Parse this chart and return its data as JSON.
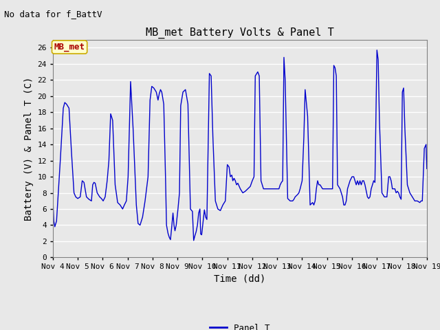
{
  "title": "MB_met Battery Volts & Panel T",
  "no_data_text": "No data for f_BattV",
  "ylabel": "Battery (V) & Panel T (C)",
  "xlabel": "Time (dd)",
  "legend_label": "Panel T",
  "legend_color": "#0000cc",
  "line_color": "#0000cc",
  "ylim": [
    0,
    27
  ],
  "yticks": [
    0,
    2,
    4,
    6,
    8,
    10,
    12,
    14,
    16,
    18,
    20,
    22,
    24,
    26
  ],
  "x_start": 4.0,
  "x_end": 19.0,
  "xtick_positions": [
    4,
    5,
    6,
    7,
    8,
    9,
    10,
    11,
    12,
    13,
    14,
    15,
    16,
    17,
    18,
    19
  ],
  "xtick_labels": [
    "Nov 4",
    "Nov 5",
    "Nov 6",
    "Nov 7",
    "Nov 8",
    "Nov 9",
    "Nov 10",
    "Nov 11",
    "Nov 12",
    "Nov 13",
    "Nov 14",
    "Nov 15",
    "Nov 16",
    "Nov 17",
    "Nov 18",
    "Nov 19"
  ],
  "bg_color": "#e8e8e8",
  "plot_bg_color": "#e8e8e8",
  "mb_met_box_facecolor": "#ffffcc",
  "mb_met_box_edgecolor": "#ccaa00",
  "mb_met_text_color": "#aa0000",
  "title_fontsize": 11,
  "axis_label_fontsize": 10,
  "tick_fontsize": 8,
  "no_data_fontsize": 9,
  "grid_color": "#ffffff",
  "series": [
    {
      "day": 4.0,
      "val": 7.5
    },
    {
      "day": 4.04,
      "val": 4.5
    },
    {
      "day": 4.08,
      "val": 3.8
    },
    {
      "day": 4.15,
      "val": 4.5
    },
    {
      "day": 4.3,
      "val": 12.0
    },
    {
      "day": 4.42,
      "val": 18.5
    },
    {
      "day": 4.48,
      "val": 19.2
    },
    {
      "day": 4.55,
      "val": 19.0
    },
    {
      "day": 4.65,
      "val": 18.5
    },
    {
      "day": 4.75,
      "val": 13.0
    },
    {
      "day": 4.85,
      "val": 8.0
    },
    {
      "day": 4.92,
      "val": 7.5
    },
    {
      "day": 5.0,
      "val": 7.3
    },
    {
      "day": 5.1,
      "val": 7.5
    },
    {
      "day": 5.18,
      "val": 9.5
    },
    {
      "day": 5.25,
      "val": 9.3
    },
    {
      "day": 5.35,
      "val": 7.5
    },
    {
      "day": 5.45,
      "val": 7.2
    },
    {
      "day": 5.55,
      "val": 7.0
    },
    {
      "day": 5.6,
      "val": 9.0
    },
    {
      "day": 5.65,
      "val": 9.3
    },
    {
      "day": 5.7,
      "val": 9.2
    },
    {
      "day": 5.78,
      "val": 8.0
    },
    {
      "day": 5.88,
      "val": 7.5
    },
    {
      "day": 5.95,
      "val": 7.3
    },
    {
      "day": 6.02,
      "val": 7.0
    },
    {
      "day": 6.1,
      "val": 7.5
    },
    {
      "day": 6.18,
      "val": 9.5
    },
    {
      "day": 6.25,
      "val": 12.0
    },
    {
      "day": 6.32,
      "val": 17.8
    },
    {
      "day": 6.4,
      "val": 17.0
    },
    {
      "day": 6.5,
      "val": 9.0
    },
    {
      "day": 6.6,
      "val": 6.8
    },
    {
      "day": 6.7,
      "val": 6.5
    },
    {
      "day": 6.8,
      "val": 6.0
    },
    {
      "day": 6.87,
      "val": 6.5
    },
    {
      "day": 6.95,
      "val": 7.0
    },
    {
      "day": 7.02,
      "val": 10.0
    },
    {
      "day": 7.08,
      "val": 17.0
    },
    {
      "day": 7.12,
      "val": 21.8
    },
    {
      "day": 7.22,
      "val": 16.0
    },
    {
      "day": 7.35,
      "val": 6.5
    },
    {
      "day": 7.42,
      "val": 4.2
    },
    {
      "day": 7.5,
      "val": 4.0
    },
    {
      "day": 7.6,
      "val": 5.0
    },
    {
      "day": 7.7,
      "val": 7.0
    },
    {
      "day": 7.82,
      "val": 10.0
    },
    {
      "day": 7.9,
      "val": 19.5
    },
    {
      "day": 7.97,
      "val": 21.2
    },
    {
      "day": 8.05,
      "val": 21.0
    },
    {
      "day": 8.15,
      "val": 20.5
    },
    {
      "day": 8.22,
      "val": 19.5
    },
    {
      "day": 8.27,
      "val": 20.3
    },
    {
      "day": 8.32,
      "val": 20.8
    },
    {
      "day": 8.37,
      "val": 20.5
    },
    {
      "day": 8.45,
      "val": 19.0
    },
    {
      "day": 8.52,
      "val": 10.0
    },
    {
      "day": 8.56,
      "val": 4.0
    },
    {
      "day": 8.62,
      "val": 3.0
    },
    {
      "day": 8.67,
      "val": 2.5
    },
    {
      "day": 8.72,
      "val": 2.2
    },
    {
      "day": 8.77,
      "val": 3.8
    },
    {
      "day": 8.82,
      "val": 5.5
    },
    {
      "day": 8.86,
      "val": 4.0
    },
    {
      "day": 8.9,
      "val": 3.3
    },
    {
      "day": 8.95,
      "val": 4.0
    },
    {
      "day": 9.02,
      "val": 6.0
    },
    {
      "day": 9.08,
      "val": 8.0
    },
    {
      "day": 9.13,
      "val": 18.8
    },
    {
      "day": 9.22,
      "val": 20.5
    },
    {
      "day": 9.32,
      "val": 20.8
    },
    {
      "day": 9.42,
      "val": 19.0
    },
    {
      "day": 9.52,
      "val": 6.0
    },
    {
      "day": 9.6,
      "val": 5.7
    },
    {
      "day": 9.65,
      "val": 2.1
    },
    {
      "day": 9.7,
      "val": 2.7
    },
    {
      "day": 9.75,
      "val": 3.2
    },
    {
      "day": 9.8,
      "val": 4.0
    },
    {
      "day": 9.85,
      "val": 5.5
    },
    {
      "day": 9.9,
      "val": 6.0
    },
    {
      "day": 9.93,
      "val": 2.9
    },
    {
      "day": 9.97,
      "val": 2.8
    },
    {
      "day": 10.03,
      "val": 4.5
    },
    {
      "day": 10.08,
      "val": 5.9
    },
    {
      "day": 10.13,
      "val": 5.0
    },
    {
      "day": 10.18,
      "val": 4.7
    },
    {
      "day": 10.28,
      "val": 22.8
    },
    {
      "day": 10.35,
      "val": 22.5
    },
    {
      "day": 10.42,
      "val": 15.0
    },
    {
      "day": 10.52,
      "val": 7.0
    },
    {
      "day": 10.62,
      "val": 6.0
    },
    {
      "day": 10.72,
      "val": 5.8
    },
    {
      "day": 10.82,
      "val": 6.5
    },
    {
      "day": 10.92,
      "val": 7.0
    },
    {
      "day": 11.0,
      "val": 11.5
    },
    {
      "day": 11.07,
      "val": 11.2
    },
    {
      "day": 11.12,
      "val": 10.0
    },
    {
      "day": 11.18,
      "val": 10.2
    },
    {
      "day": 11.22,
      "val": 9.5
    },
    {
      "day": 11.27,
      "val": 9.8
    },
    {
      "day": 11.32,
      "val": 9.5
    },
    {
      "day": 11.37,
      "val": 9.0
    },
    {
      "day": 11.42,
      "val": 9.2
    },
    {
      "day": 11.52,
      "val": 8.5
    },
    {
      "day": 11.62,
      "val": 8.0
    },
    {
      "day": 11.72,
      "val": 8.2
    },
    {
      "day": 11.82,
      "val": 8.5
    },
    {
      "day": 11.92,
      "val": 8.8
    },
    {
      "day": 12.0,
      "val": 9.5
    },
    {
      "day": 12.07,
      "val": 10.0
    },
    {
      "day": 12.12,
      "val": 22.5
    },
    {
      "day": 12.22,
      "val": 23.0
    },
    {
      "day": 12.28,
      "val": 22.5
    },
    {
      "day": 12.35,
      "val": 9.5
    },
    {
      "day": 12.45,
      "val": 8.5
    },
    {
      "day": 12.55,
      "val": 8.5
    },
    {
      "day": 12.65,
      "val": 8.5
    },
    {
      "day": 12.75,
      "val": 8.5
    },
    {
      "day": 12.85,
      "val": 8.5
    },
    {
      "day": 12.95,
      "val": 8.5
    },
    {
      "day": 13.0,
      "val": 8.5
    },
    {
      "day": 13.07,
      "val": 8.5
    },
    {
      "day": 13.12,
      "val": 9.0
    },
    {
      "day": 13.17,
      "val": 9.3
    },
    {
      "day": 13.22,
      "val": 9.5
    },
    {
      "day": 13.27,
      "val": 24.8
    },
    {
      "day": 13.32,
      "val": 22.0
    },
    {
      "day": 13.42,
      "val": 7.3
    },
    {
      "day": 13.52,
      "val": 7.0
    },
    {
      "day": 13.62,
      "val": 7.0
    },
    {
      "day": 13.67,
      "val": 7.2
    },
    {
      "day": 13.72,
      "val": 7.5
    },
    {
      "day": 13.82,
      "val": 7.8
    },
    {
      "day": 13.87,
      "val": 8.0
    },
    {
      "day": 13.92,
      "val": 8.5
    },
    {
      "day": 14.0,
      "val": 9.5
    },
    {
      "day": 14.07,
      "val": 15.0
    },
    {
      "day": 14.12,
      "val": 20.8
    },
    {
      "day": 14.22,
      "val": 17.5
    },
    {
      "day": 14.32,
      "val": 6.5
    },
    {
      "day": 14.42,
      "val": 6.8
    },
    {
      "day": 14.47,
      "val": 6.5
    },
    {
      "day": 14.52,
      "val": 7.0
    },
    {
      "day": 14.57,
      "val": 8.5
    },
    {
      "day": 14.62,
      "val": 9.5
    },
    {
      "day": 14.67,
      "val": 9.0
    },
    {
      "day": 14.72,
      "val": 9.0
    },
    {
      "day": 14.82,
      "val": 8.5
    },
    {
      "day": 14.92,
      "val": 8.5
    },
    {
      "day": 15.0,
      "val": 8.5
    },
    {
      "day": 15.07,
      "val": 8.5
    },
    {
      "day": 15.12,
      "val": 8.5
    },
    {
      "day": 15.17,
      "val": 8.5
    },
    {
      "day": 15.22,
      "val": 8.5
    },
    {
      "day": 15.27,
      "val": 23.8
    },
    {
      "day": 15.32,
      "val": 23.5
    },
    {
      "day": 15.37,
      "val": 22.5
    },
    {
      "day": 15.42,
      "val": 9.0
    },
    {
      "day": 15.52,
      "val": 8.5
    },
    {
      "day": 15.62,
      "val": 7.5
    },
    {
      "day": 15.67,
      "val": 6.5
    },
    {
      "day": 15.72,
      "val": 6.5
    },
    {
      "day": 15.77,
      "val": 7.0
    },
    {
      "day": 15.82,
      "val": 8.5
    },
    {
      "day": 15.92,
      "val": 9.5
    },
    {
      "day": 16.0,
      "val": 10.0
    },
    {
      "day": 16.07,
      "val": 10.0
    },
    {
      "day": 16.12,
      "val": 9.5
    },
    {
      "day": 16.17,
      "val": 9.0
    },
    {
      "day": 16.22,
      "val": 9.5
    },
    {
      "day": 16.27,
      "val": 9.0
    },
    {
      "day": 16.32,
      "val": 9.5
    },
    {
      "day": 16.37,
      "val": 9.0
    },
    {
      "day": 16.42,
      "val": 9.5
    },
    {
      "day": 16.47,
      "val": 9.5
    },
    {
      "day": 16.52,
      "val": 9.0
    },
    {
      "day": 16.62,
      "val": 7.5
    },
    {
      "day": 16.67,
      "val": 7.3
    },
    {
      "day": 16.72,
      "val": 7.5
    },
    {
      "day": 16.77,
      "val": 8.5
    },
    {
      "day": 16.82,
      "val": 9.0
    },
    {
      "day": 16.87,
      "val": 9.5
    },
    {
      "day": 16.92,
      "val": 9.3
    },
    {
      "day": 17.0,
      "val": 25.7
    },
    {
      "day": 17.05,
      "val": 24.5
    },
    {
      "day": 17.1,
      "val": 17.0
    },
    {
      "day": 17.2,
      "val": 8.0
    },
    {
      "day": 17.3,
      "val": 7.5
    },
    {
      "day": 17.4,
      "val": 7.5
    },
    {
      "day": 17.47,
      "val": 10.0
    },
    {
      "day": 17.52,
      "val": 10.0
    },
    {
      "day": 17.57,
      "val": 9.5
    },
    {
      "day": 17.62,
      "val": 8.5
    },
    {
      "day": 17.72,
      "val": 8.5
    },
    {
      "day": 17.77,
      "val": 8.0
    },
    {
      "day": 17.82,
      "val": 8.2
    },
    {
      "day": 17.87,
      "val": 8.0
    },
    {
      "day": 17.92,
      "val": 7.5
    },
    {
      "day": 17.97,
      "val": 7.2
    },
    {
      "day": 18.02,
      "val": 20.5
    },
    {
      "day": 18.07,
      "val": 21.0
    },
    {
      "day": 18.12,
      "val": 16.0
    },
    {
      "day": 18.22,
      "val": 9.0
    },
    {
      "day": 18.32,
      "val": 8.0
    },
    {
      "day": 18.42,
      "val": 7.5
    },
    {
      "day": 18.52,
      "val": 7.0
    },
    {
      "day": 18.62,
      "val": 7.0
    },
    {
      "day": 18.72,
      "val": 6.8
    },
    {
      "day": 18.77,
      "val": 7.0
    },
    {
      "day": 18.82,
      "val": 7.0
    },
    {
      "day": 18.9,
      "val": 13.5
    },
    {
      "day": 18.97,
      "val": 14.0
    },
    {
      "day": 19.0,
      "val": 11.0
    }
  ]
}
